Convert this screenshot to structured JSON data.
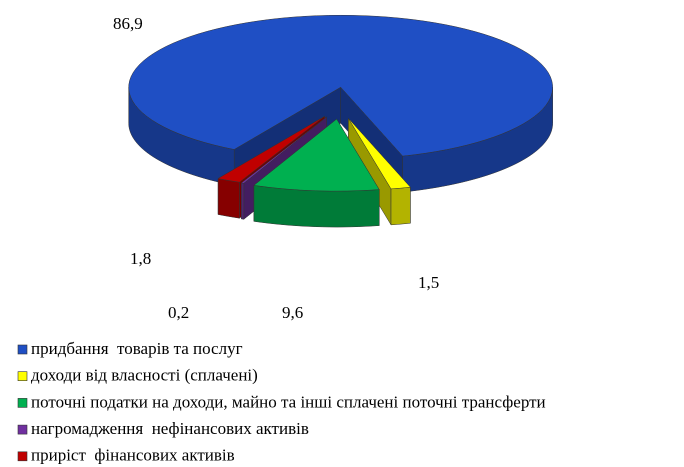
{
  "chart_data": {
    "type": "pie",
    "three_d": true,
    "categories": [
      "придбання  товарів та послуг",
      "доходи від власності (сплачені)",
      "поточні податки на доходи, майно та інші сплачені поточні трансферти",
      "нагромадження  нефінансових активів",
      "приріст  фінансових активів"
    ],
    "values": [
      86.9,
      1.5,
      9.6,
      0.2,
      1.8
    ],
    "value_labels": [
      "86,9",
      "1,5",
      "9,6",
      "0,2",
      "1,8"
    ],
    "colors": [
      "#1f4fc4",
      "#ffff00",
      "#00b050",
      "#7030a0",
      "#c00000"
    ],
    "legend": "bottom"
  }
}
